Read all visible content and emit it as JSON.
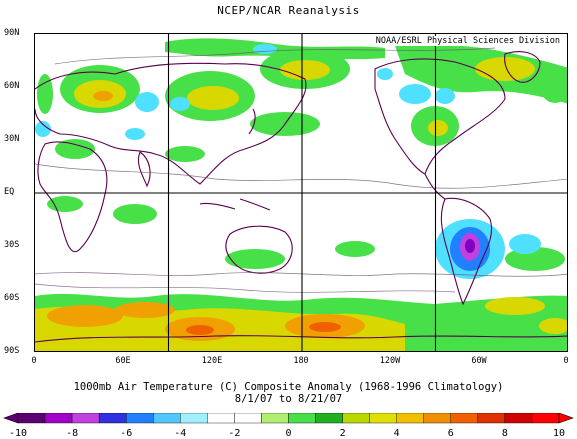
{
  "header": {
    "title": "NCEP/NCAR Reanalysis"
  },
  "map": {
    "credit": "NOAA/ESRL Physical Sciences Division",
    "lat_labels": [
      "90N",
      "60N",
      "30N",
      "EQ",
      "30S",
      "60S",
      "90S"
    ],
    "lon_labels": [
      "0",
      "60E",
      "120E",
      "180",
      "120W",
      "60W",
      "0"
    ],
    "colors": {
      "light_green": "#48e048",
      "green": "#20b020",
      "yellow": "#d8d800",
      "orange": "#f0a000",
      "cyan": "#50e0ff",
      "blue_mid": "#2080ff",
      "purple": "#8000c0",
      "land_outline": "#5a0050",
      "grid": "#000000"
    }
  },
  "caption": {
    "line1": "1000mb Air Temperature (C) Composite Anomaly (1968-1996 Climatology)",
    "line2": "8/1/07  to 8/21/07"
  },
  "colorbar": {
    "tick_labels": [
      "-10",
      "-8",
      "-6",
      "-4",
      "-2",
      "0",
      "2",
      "4",
      "6",
      "8",
      "10"
    ],
    "colors": [
      "#5a0070",
      "#a000c8",
      "#c040e0",
      "#3030e0",
      "#2080ff",
      "#50c8ff",
      "#a0f0ff",
      "#ffffff",
      "#ffffff",
      "#b0f070",
      "#48e048",
      "#20b020",
      "#b8d800",
      "#e0e000",
      "#f0c000",
      "#f09000",
      "#f06000",
      "#e03000",
      "#d00000",
      "#ff0000"
    ]
  }
}
